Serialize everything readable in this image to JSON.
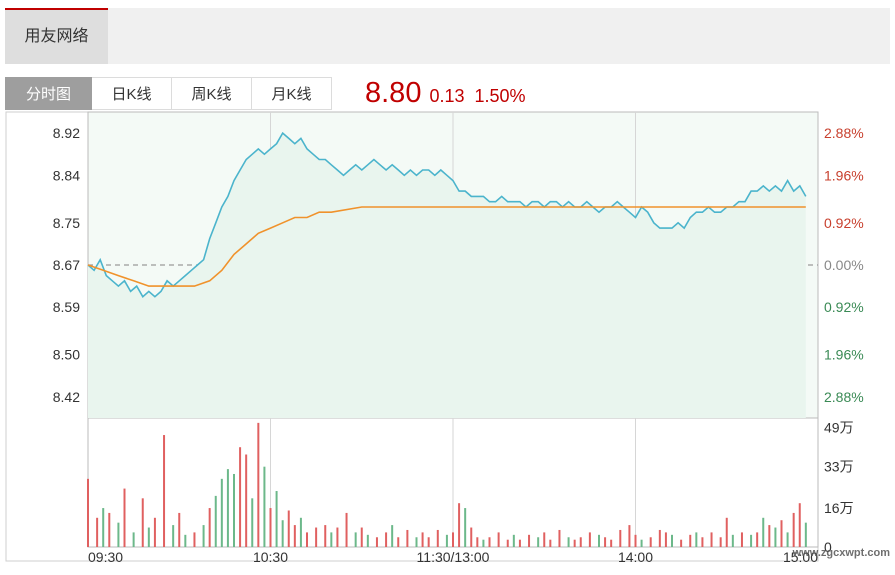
{
  "header": {
    "tab_label": "用友网络"
  },
  "tabs": [
    {
      "label": "分时图",
      "active": true
    },
    {
      "label": "日K线",
      "active": false
    },
    {
      "label": "周K线",
      "active": false
    },
    {
      "label": "月K线",
      "active": false
    }
  ],
  "quote": {
    "price": "8.80",
    "change": "0.13",
    "change_pct": "1.50%",
    "color": "#c00000"
  },
  "watermark": "www.zgcxwpt.com",
  "chart_data": {
    "type": "line",
    "prev_close": 8.67,
    "price_axis": {
      "ylim": [
        8.38,
        8.96
      ],
      "ticks": [
        8.92,
        8.84,
        8.75,
        8.67,
        8.59,
        8.5,
        8.42
      ],
      "tick_labels": [
        "8.92",
        "8.84",
        "8.75",
        "8.67",
        "8.59",
        "8.50",
        "8.42"
      ]
    },
    "pct_axis": {
      "tick_labels": [
        "2.88%",
        "1.96%",
        "0.92%",
        "0.00%",
        "0.92%",
        "1.96%",
        "2.88%"
      ],
      "tick_colors": [
        "#c8402e",
        "#c8402e",
        "#c8402e",
        "#888888",
        "#3a8a55",
        "#3a8a55",
        "#3a8a55"
      ]
    },
    "time_axis": {
      "tick_labels": [
        "09:30",
        "10:30",
        "11:30/13:00",
        "14:00",
        "15:00"
      ],
      "tick_minutes": [
        0,
        60,
        120,
        180,
        240
      ],
      "total_minutes": 240
    },
    "series": [
      {
        "color": "#4bb4cc",
        "points": [
          [
            0,
            8.67
          ],
          [
            2,
            8.66
          ],
          [
            4,
            8.68
          ],
          [
            6,
            8.65
          ],
          [
            8,
            8.64
          ],
          [
            10,
            8.63
          ],
          [
            12,
            8.64
          ],
          [
            14,
            8.62
          ],
          [
            16,
            8.63
          ],
          [
            18,
            8.61
          ],
          [
            20,
            8.62
          ],
          [
            22,
            8.61
          ],
          [
            24,
            8.62
          ],
          [
            26,
            8.64
          ],
          [
            28,
            8.63
          ],
          [
            30,
            8.64
          ],
          [
            32,
            8.65
          ],
          [
            34,
            8.66
          ],
          [
            36,
            8.67
          ],
          [
            38,
            8.68
          ],
          [
            40,
            8.72
          ],
          [
            42,
            8.75
          ],
          [
            44,
            8.78
          ],
          [
            46,
            8.8
          ],
          [
            48,
            8.83
          ],
          [
            50,
            8.85
          ],
          [
            52,
            8.87
          ],
          [
            54,
            8.88
          ],
          [
            56,
            8.89
          ],
          [
            58,
            8.88
          ],
          [
            60,
            8.89
          ],
          [
            62,
            8.9
          ],
          [
            64,
            8.92
          ],
          [
            66,
            8.91
          ],
          [
            68,
            8.9
          ],
          [
            70,
            8.91
          ],
          [
            72,
            8.89
          ],
          [
            74,
            8.88
          ],
          [
            76,
            8.87
          ],
          [
            78,
            8.87
          ],
          [
            80,
            8.86
          ],
          [
            82,
            8.85
          ],
          [
            84,
            8.84
          ],
          [
            86,
            8.85
          ],
          [
            88,
            8.86
          ],
          [
            90,
            8.85
          ],
          [
            92,
            8.86
          ],
          [
            94,
            8.87
          ],
          [
            96,
            8.86
          ],
          [
            98,
            8.85
          ],
          [
            100,
            8.86
          ],
          [
            102,
            8.85
          ],
          [
            104,
            8.84
          ],
          [
            106,
            8.85
          ],
          [
            108,
            8.84
          ],
          [
            110,
            8.85
          ],
          [
            112,
            8.85
          ],
          [
            114,
            8.84
          ],
          [
            116,
            8.85
          ],
          [
            118,
            8.84
          ],
          [
            120,
            8.83
          ],
          [
            122,
            8.81
          ],
          [
            124,
            8.81
          ],
          [
            126,
            8.8
          ],
          [
            128,
            8.8
          ],
          [
            130,
            8.8
          ],
          [
            132,
            8.79
          ],
          [
            134,
            8.79
          ],
          [
            136,
            8.8
          ],
          [
            138,
            8.79
          ],
          [
            140,
            8.79
          ],
          [
            142,
            8.79
          ],
          [
            144,
            8.78
          ],
          [
            146,
            8.79
          ],
          [
            148,
            8.79
          ],
          [
            150,
            8.78
          ],
          [
            152,
            8.79
          ],
          [
            154,
            8.79
          ],
          [
            156,
            8.78
          ],
          [
            158,
            8.79
          ],
          [
            160,
            8.78
          ],
          [
            162,
            8.78
          ],
          [
            164,
            8.79
          ],
          [
            166,
            8.78
          ],
          [
            168,
            8.77
          ],
          [
            170,
            8.78
          ],
          [
            172,
            8.78
          ],
          [
            174,
            8.79
          ],
          [
            176,
            8.78
          ],
          [
            178,
            8.77
          ],
          [
            180,
            8.76
          ],
          [
            182,
            8.78
          ],
          [
            184,
            8.77
          ],
          [
            186,
            8.75
          ],
          [
            188,
            8.74
          ],
          [
            190,
            8.74
          ],
          [
            192,
            8.74
          ],
          [
            194,
            8.75
          ],
          [
            196,
            8.74
          ],
          [
            198,
            8.76
          ],
          [
            200,
            8.77
          ],
          [
            202,
            8.77
          ],
          [
            204,
            8.78
          ],
          [
            206,
            8.77
          ],
          [
            208,
            8.77
          ],
          [
            210,
            8.78
          ],
          [
            212,
            8.78
          ],
          [
            214,
            8.79
          ],
          [
            216,
            8.79
          ],
          [
            218,
            8.81
          ],
          [
            220,
            8.81
          ],
          [
            222,
            8.82
          ],
          [
            224,
            8.81
          ],
          [
            226,
            8.82
          ],
          [
            228,
            8.81
          ],
          [
            230,
            8.83
          ],
          [
            232,
            8.81
          ],
          [
            234,
            8.82
          ],
          [
            236,
            8.8
          ]
        ]
      },
      {
        "color": "#f0922b",
        "points": [
          [
            0,
            8.67
          ],
          [
            5,
            8.66
          ],
          [
            10,
            8.65
          ],
          [
            15,
            8.64
          ],
          [
            20,
            8.63
          ],
          [
            25,
            8.63
          ],
          [
            30,
            8.63
          ],
          [
            35,
            8.63
          ],
          [
            40,
            8.64
          ],
          [
            44,
            8.66
          ],
          [
            48,
            8.69
          ],
          [
            52,
            8.71
          ],
          [
            56,
            8.73
          ],
          [
            60,
            8.74
          ],
          [
            64,
            8.75
          ],
          [
            68,
            8.76
          ],
          [
            72,
            8.76
          ],
          [
            76,
            8.77
          ],
          [
            80,
            8.77
          ],
          [
            90,
            8.78
          ],
          [
            100,
            8.78
          ],
          [
            110,
            8.78
          ],
          [
            120,
            8.78
          ],
          [
            150,
            8.78
          ],
          [
            180,
            8.78
          ],
          [
            210,
            8.78
          ],
          [
            236,
            8.78
          ]
        ]
      }
    ],
    "volume": {
      "axis_labels": [
        "49万",
        "33万",
        "16万",
        "0"
      ],
      "axis_values": [
        490000,
        330000,
        160000,
        0
      ],
      "max": 530000,
      "up_color": "#e06060",
      "down_color": "#6cb88a",
      "bars": [
        [
          0,
          280000,
          0
        ],
        [
          3,
          120000,
          0
        ],
        [
          5,
          160000,
          1
        ],
        [
          7,
          140000,
          0
        ],
        [
          10,
          100000,
          1
        ],
        [
          12,
          240000,
          0
        ],
        [
          15,
          60000,
          1
        ],
        [
          18,
          200000,
          0
        ],
        [
          20,
          80000,
          1
        ],
        [
          22,
          120000,
          0
        ],
        [
          25,
          460000,
          0
        ],
        [
          28,
          90000,
          1
        ],
        [
          30,
          140000,
          0
        ],
        [
          32,
          50000,
          1
        ],
        [
          35,
          60000,
          0
        ],
        [
          38,
          90000,
          1
        ],
        [
          40,
          160000,
          0
        ],
        [
          42,
          210000,
          1
        ],
        [
          44,
          280000,
          1
        ],
        [
          46,
          320000,
          1
        ],
        [
          48,
          300000,
          1
        ],
        [
          50,
          410000,
          0
        ],
        [
          52,
          380000,
          0
        ],
        [
          54,
          200000,
          1
        ],
        [
          56,
          510000,
          0
        ],
        [
          58,
          330000,
          1
        ],
        [
          60,
          160000,
          0
        ],
        [
          62,
          230000,
          1
        ],
        [
          64,
          110000,
          1
        ],
        [
          66,
          150000,
          0
        ],
        [
          68,
          90000,
          0
        ],
        [
          70,
          120000,
          1
        ],
        [
          72,
          60000,
          0
        ],
        [
          75,
          80000,
          0
        ],
        [
          78,
          90000,
          0
        ],
        [
          80,
          60000,
          1
        ],
        [
          82,
          80000,
          0
        ],
        [
          85,
          140000,
          0
        ],
        [
          88,
          60000,
          1
        ],
        [
          90,
          80000,
          0
        ],
        [
          92,
          50000,
          1
        ],
        [
          95,
          40000,
          0
        ],
        [
          98,
          60000,
          0
        ],
        [
          100,
          90000,
          1
        ],
        [
          102,
          40000,
          0
        ],
        [
          105,
          70000,
          0
        ],
        [
          108,
          40000,
          1
        ],
        [
          110,
          60000,
          0
        ],
        [
          112,
          40000,
          0
        ],
        [
          115,
          70000,
          0
        ],
        [
          118,
          50000,
          1
        ],
        [
          120,
          60000,
          0
        ],
        [
          122,
          180000,
          0
        ],
        [
          124,
          160000,
          1
        ],
        [
          126,
          80000,
          0
        ],
        [
          128,
          40000,
          0
        ],
        [
          130,
          30000,
          1
        ],
        [
          132,
          40000,
          0
        ],
        [
          135,
          60000,
          0
        ],
        [
          138,
          30000,
          0
        ],
        [
          140,
          50000,
          1
        ],
        [
          142,
          30000,
          0
        ],
        [
          145,
          50000,
          0
        ],
        [
          148,
          40000,
          1
        ],
        [
          150,
          60000,
          0
        ],
        [
          152,
          30000,
          0
        ],
        [
          155,
          70000,
          0
        ],
        [
          158,
          40000,
          1
        ],
        [
          160,
          30000,
          0
        ],
        [
          162,
          40000,
          0
        ],
        [
          165,
          60000,
          0
        ],
        [
          168,
          50000,
          1
        ],
        [
          170,
          40000,
          0
        ],
        [
          172,
          30000,
          0
        ],
        [
          175,
          70000,
          0
        ],
        [
          178,
          90000,
          0
        ],
        [
          180,
          50000,
          0
        ],
        [
          182,
          30000,
          1
        ],
        [
          185,
          40000,
          0
        ],
        [
          188,
          70000,
          0
        ],
        [
          190,
          60000,
          0
        ],
        [
          192,
          50000,
          1
        ],
        [
          195,
          30000,
          0
        ],
        [
          198,
          50000,
          0
        ],
        [
          200,
          60000,
          1
        ],
        [
          202,
          40000,
          0
        ],
        [
          205,
          60000,
          0
        ],
        [
          208,
          40000,
          0
        ],
        [
          210,
          120000,
          0
        ],
        [
          212,
          50000,
          1
        ],
        [
          215,
          60000,
          0
        ],
        [
          218,
          50000,
          1
        ],
        [
          220,
          60000,
          0
        ],
        [
          222,
          120000,
          1
        ],
        [
          224,
          90000,
          0
        ],
        [
          226,
          80000,
          1
        ],
        [
          228,
          110000,
          0
        ],
        [
          230,
          60000,
          1
        ],
        [
          232,
          140000,
          0
        ],
        [
          234,
          180000,
          0
        ],
        [
          236,
          100000,
          1
        ]
      ]
    }
  }
}
